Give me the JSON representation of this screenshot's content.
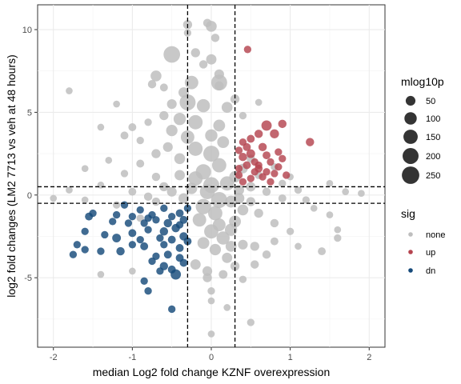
{
  "chart_data": {
    "type": "scatter",
    "title": "",
    "xlabel": "median Log2 fold change KZNF overexpression",
    "ylabel": "log2 fold changes (LM2 7713 vs veh at 48 hours)",
    "xlim": [
      -2.2,
      2.2
    ],
    "ylim": [
      -9.2,
      11.5
    ],
    "x_ticks": [
      -2,
      -1,
      0,
      1,
      2
    ],
    "y_ticks": [
      -5,
      0,
      5,
      10
    ],
    "grid": true,
    "legend_position": "right",
    "reference_lines": {
      "x": [
        -0.3,
        0.3
      ],
      "y": [
        -0.5,
        0.5
      ]
    },
    "size_legend": {
      "title": "mlog10p",
      "values": [
        50,
        100,
        150,
        200,
        250
      ],
      "labels": [
        "50",
        "100",
        "150",
        "200",
        "250"
      ]
    },
    "color_legend": {
      "title": "sig",
      "entries": [
        {
          "label": "none",
          "color": "#bebebe"
        },
        {
          "label": "up",
          "color": "#b5444f"
        },
        {
          "label": "dn",
          "color": "#164a7a"
        }
      ]
    },
    "series": [
      {
        "sig": "none",
        "color": "#bebebe",
        "points": [
          [
            -0.3,
            10.3,
            40
          ],
          [
            -0.05,
            10.4,
            30
          ],
          [
            0,
            10.2,
            70
          ],
          [
            -0.3,
            9.8,
            20
          ],
          [
            0.05,
            9.5,
            30
          ],
          [
            -0.5,
            8.5,
            220
          ],
          [
            -0.2,
            8.6,
            40
          ],
          [
            0,
            8.2,
            60
          ],
          [
            -0.1,
            7.9,
            30
          ],
          [
            0.1,
            7.3,
            50
          ],
          [
            0.1,
            6.6,
            40
          ],
          [
            -0.7,
            7.2,
            70
          ],
          [
            -0.25,
            6.8,
            130
          ],
          [
            0.1,
            6.8,
            200
          ],
          [
            -1.8,
            6.3,
            15
          ],
          [
            -0.75,
            6.7,
            30
          ],
          [
            -0.6,
            6.5,
            25
          ],
          [
            -0.35,
            6.2,
            60
          ],
          [
            0.3,
            5.8,
            40
          ],
          [
            -0.3,
            5.6,
            200
          ],
          [
            -0.1,
            5.4,
            120
          ],
          [
            -0.5,
            5.5,
            50
          ],
          [
            0.2,
            5.3,
            70
          ],
          [
            -0.6,
            4.8,
            40
          ],
          [
            -0.4,
            4.6,
            100
          ],
          [
            -0.2,
            4.4,
            150
          ],
          [
            0.1,
            4.2,
            90
          ],
          [
            -0.8,
            4.4,
            20
          ],
          [
            -1.2,
            5.5,
            15
          ],
          [
            -1.0,
            4.1,
            25
          ],
          [
            -0.9,
            3.3,
            20
          ],
          [
            -1.4,
            4.1,
            15
          ],
          [
            -1.1,
            3.6,
            25
          ],
          [
            -0.5,
            3.9,
            80
          ],
          [
            -0.3,
            3.5,
            130
          ],
          [
            0,
            3.6,
            100
          ],
          [
            0.15,
            3.2,
            90
          ],
          [
            0.4,
            4.8,
            20
          ],
          [
            0.6,
            5.6,
            15
          ],
          [
            -0.7,
            2.5,
            40
          ],
          [
            -0.55,
            2.9,
            50
          ],
          [
            -0.4,
            2.2,
            70
          ],
          [
            -0.2,
            2.8,
            150
          ],
          [
            0,
            2.5,
            200
          ],
          [
            0.1,
            1.8,
            150
          ],
          [
            -0.1,
            1.4,
            180
          ],
          [
            -0.2,
            1.0,
            150
          ],
          [
            0,
            0.6,
            200
          ],
          [
            -0.05,
            0.2,
            170
          ],
          [
            0.1,
            -0.3,
            200
          ],
          [
            -0.1,
            -0.7,
            180
          ],
          [
            0.05,
            -1.1,
            150
          ],
          [
            -0.15,
            -1.5,
            130
          ],
          [
            0.1,
            -1.8,
            110
          ],
          [
            0,
            -2.2,
            150
          ],
          [
            0.15,
            -2.6,
            120
          ],
          [
            -0.1,
            -2.9,
            90
          ],
          [
            0.05,
            -3.3,
            80
          ],
          [
            0.25,
            -3.1,
            70
          ],
          [
            0.4,
            -3.0,
            50
          ],
          [
            0.55,
            -3.1,
            40
          ],
          [
            0.7,
            -3.6,
            30
          ],
          [
            0.8,
            -2.8,
            25
          ],
          [
            -0.05,
            -4.6,
            50
          ],
          [
            -0.05,
            -5.0,
            40
          ],
          [
            0.15,
            -4.8,
            35
          ],
          [
            0.4,
            -5.1,
            20
          ],
          [
            0,
            -5.8,
            20
          ],
          [
            0,
            -6.4,
            15
          ],
          [
            0,
            -8.4,
            15
          ],
          [
            0.5,
            -7.7,
            20
          ],
          [
            0.2,
            -6.8,
            15
          ],
          [
            -1.4,
            -4.8,
            15
          ],
          [
            -1.0,
            -4.6,
            15
          ],
          [
            -0.9,
            -1.4,
            20
          ],
          [
            -0.7,
            -0.4,
            30
          ],
          [
            -0.5,
            0.2,
            50
          ],
          [
            -0.35,
            -0.2,
            60
          ],
          [
            0.35,
            0.3,
            60
          ],
          [
            0.5,
            -0.4,
            40
          ],
          [
            0.7,
            0.2,
            30
          ],
          [
            0.9,
            -0.2,
            25
          ],
          [
            1.1,
            0.3,
            20
          ],
          [
            1.3,
            -0.8,
            15
          ],
          [
            1.5,
            -1.2,
            15
          ],
          [
            1.6,
            -2.1,
            15
          ],
          [
            1.6,
            -2.6,
            20
          ],
          [
            1.4,
            -3.4,
            25
          ],
          [
            1.1,
            -3.1,
            15
          ],
          [
            1.0,
            -2.2,
            20
          ],
          [
            0.8,
            -1.7,
            30
          ],
          [
            0.6,
            -1.1,
            40
          ],
          [
            0.4,
            -0.9,
            70
          ],
          [
            0.3,
            -1.6,
            90
          ],
          [
            0.25,
            -2.1,
            100
          ],
          [
            0.3,
            1.1,
            80
          ],
          [
            0.4,
            1.6,
            50
          ],
          [
            0.5,
            2.2,
            30
          ],
          [
            0.6,
            1.2,
            25
          ],
          [
            0.8,
            1.7,
            20
          ],
          [
            1.0,
            1.1,
            15
          ],
          [
            1.5,
            0.7,
            15
          ],
          [
            1.7,
            0.2,
            15
          ],
          [
            -1.6,
            1.6,
            15
          ],
          [
            -1.6,
            -0.3,
            15
          ],
          [
            -1.4,
            0.6,
            15
          ],
          [
            -1.2,
            -0.6,
            20
          ],
          [
            -1.1,
            1.3,
            20
          ],
          [
            -1.3,
            2.1,
            15
          ],
          [
            -0.9,
            1.9,
            25
          ],
          [
            -0.7,
            1.1,
            30
          ],
          [
            -0.6,
            0.5,
            40
          ],
          [
            -0.4,
            1.2,
            60
          ],
          [
            -0.25,
            0.4,
            80
          ],
          [
            0.2,
            0.7,
            150
          ],
          [
            0.5,
            0.5,
            45
          ],
          [
            1.9,
            0.1,
            15
          ],
          [
            1.2,
            -0.3,
            20
          ],
          [
            0.9,
            0.7,
            20
          ],
          [
            -2.0,
            -0.2,
            15
          ],
          [
            -1.8,
            0.3,
            15
          ],
          [
            -1.0,
            0.2,
            25
          ],
          [
            -0.8,
            -0.1,
            30
          ],
          [
            0.25,
            -0.4,
            90
          ],
          [
            0.35,
            -0.2,
            70
          ],
          [
            -0.2,
            -4.2,
            60
          ],
          [
            0.3,
            -4.3,
            40
          ],
          [
            0.55,
            -4.2,
            30
          ],
          [
            0.2,
            -3.8,
            60
          ]
        ]
      },
      {
        "sig": "up",
        "color": "#b5444f",
        "points": [
          [
            0.46,
            8.8,
            20
          ],
          [
            0.9,
            4.3,
            30
          ],
          [
            0.7,
            4.2,
            60
          ],
          [
            0.8,
            3.7,
            40
          ],
          [
            0.6,
            3.7,
            30
          ],
          [
            1.25,
            3.2,
            30
          ],
          [
            0.5,
            3.4,
            25
          ],
          [
            0.45,
            2.9,
            25
          ],
          [
            0.5,
            2.5,
            35
          ],
          [
            0.4,
            2.3,
            30
          ],
          [
            0.35,
            2.7,
            20
          ],
          [
            0.65,
            2.9,
            30
          ],
          [
            0.7,
            2.4,
            25
          ],
          [
            0.75,
            2.0,
            20
          ],
          [
            0.85,
            2.6,
            20
          ],
          [
            0.9,
            2.2,
            20
          ],
          [
            0.55,
            2.0,
            20
          ],
          [
            0.45,
            1.8,
            25
          ],
          [
            0.35,
            1.6,
            20
          ],
          [
            0.6,
            1.6,
            25
          ],
          [
            0.8,
            1.3,
            20
          ],
          [
            0.65,
            1.1,
            20
          ],
          [
            0.5,
            1.0,
            20
          ],
          [
            0.4,
            0.8,
            20
          ],
          [
            0.35,
            1.2,
            20
          ],
          [
            0.55,
            1.4,
            20
          ],
          [
            0.75,
            0.8,
            20
          ],
          [
            0.95,
            1.2,
            20
          ],
          [
            0.85,
            1.7,
            20
          ],
          [
            0.4,
            3.2,
            20
          ],
          [
            0.6,
            1.8,
            20
          ],
          [
            0.7,
            1.4,
            20
          ]
        ]
      },
      {
        "sig": "dn",
        "color": "#164a7a",
        "points": [
          [
            -0.3,
            -0.8,
            20
          ],
          [
            -0.6,
            -0.8,
            20
          ],
          [
            -0.9,
            -0.9,
            20
          ],
          [
            -1.1,
            -0.6,
            20
          ],
          [
            -1.5,
            -1.1,
            20
          ],
          [
            -1.55,
            -1.3,
            25
          ],
          [
            -1.2,
            -1.2,
            20
          ],
          [
            -1.0,
            -1.3,
            20
          ],
          [
            -0.75,
            -1.2,
            20
          ],
          [
            -0.5,
            -1.3,
            20
          ],
          [
            -0.4,
            -1.1,
            25
          ],
          [
            -0.35,
            -1.5,
            25
          ],
          [
            -0.55,
            -1.7,
            30
          ],
          [
            -0.7,
            -1.5,
            20
          ],
          [
            -0.85,
            -1.7,
            20
          ],
          [
            -1.05,
            -1.7,
            20
          ],
          [
            -1.25,
            -1.6,
            20
          ],
          [
            -1.6,
            -2.2,
            20
          ],
          [
            -1.35,
            -2.4,
            20
          ],
          [
            -1.2,
            -2.6,
            35
          ],
          [
            -1.0,
            -2.3,
            25
          ],
          [
            -0.8,
            -2.1,
            20
          ],
          [
            -0.6,
            -2.2,
            30
          ],
          [
            -0.45,
            -2.0,
            30
          ],
          [
            -0.35,
            -2.5,
            30
          ],
          [
            -0.5,
            -2.7,
            25
          ],
          [
            -0.65,
            -2.6,
            20
          ],
          [
            -0.9,
            -2.7,
            20
          ],
          [
            -0.85,
            -3.1,
            25
          ],
          [
            -0.6,
            -3.0,
            20
          ],
          [
            -0.4,
            -3.2,
            25
          ],
          [
            -0.55,
            -3.6,
            25
          ],
          [
            -0.7,
            -3.7,
            20
          ],
          [
            -0.35,
            -4.1,
            25
          ],
          [
            -0.6,
            -4.3,
            30
          ],
          [
            -0.5,
            -4.5,
            25
          ],
          [
            -0.45,
            -4.8,
            60
          ],
          [
            -0.65,
            -4.6,
            20
          ],
          [
            -1.15,
            -3.4,
            30
          ],
          [
            -1.4,
            -3.4,
            20
          ],
          [
            -1.6,
            -3.3,
            20
          ],
          [
            -1.7,
            -3.0,
            20
          ],
          [
            -1.75,
            -3.6,
            20
          ],
          [
            -0.85,
            -5.2,
            20
          ],
          [
            -0.8,
            -5.8,
            20
          ],
          [
            -0.5,
            -6.9,
            20
          ],
          [
            -0.3,
            -2.8,
            25
          ],
          [
            -0.4,
            -3.8,
            25
          ],
          [
            -0.75,
            -4.0,
            20
          ],
          [
            -1.0,
            -3.0,
            20
          ],
          [
            -0.8,
            -1.4,
            20
          ],
          [
            -0.4,
            -1.8,
            20
          ]
        ]
      }
    ]
  }
}
